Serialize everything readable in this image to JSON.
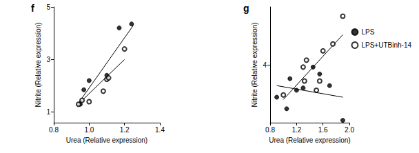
{
  "chart_data": [
    {
      "type": "scatter",
      "title": "f",
      "x_label": "Urea (Relative expression)",
      "y_label": "Nitrite (Relative expression)",
      "xlim": [
        0.8,
        1.4
      ],
      "xticks": [
        0.8,
        {
          "value": 1,
          "label": "1.0"
        },
        1.2,
        1.4
      ],
      "ylim": [
        0.6,
        5
      ],
      "yticks": [
        1,
        3,
        5
      ],
      "series": [
        {
          "name": "LPS",
          "color": "#000000",
          "marker": "circle",
          "x": [
            0.95,
            0.97,
            1.0,
            1.1,
            1.17,
            1.24
          ],
          "values": [
            1.3,
            1.85,
            2.2,
            2.4,
            4.2,
            4.35
          ],
          "fit": {
            "x": [
              0.93,
              1.25
            ],
            "values": [
              1.25,
              4.3
            ]
          }
        },
        {
          "name": "LPS+UTBinh-14",
          "color": "#000000",
          "marker": "open_circle",
          "x": [
            0.94,
            0.96,
            1.0,
            1.08,
            1.1,
            1.11,
            1.2
          ],
          "values": [
            1.3,
            1.45,
            1.4,
            1.8,
            2.25,
            2.3,
            3.4
          ],
          "fit": {
            "x": [
              0.93,
              1.2
            ],
            "values": [
              1.25,
              3.0
            ]
          }
        }
      ]
    },
    {
      "type": "scatter",
      "title": "g",
      "x_label": "Urea (Relative expression)",
      "y_label": "Nitrite (Relative expression)",
      "xlim": [
        0.8,
        2.0
      ],
      "xticks": [
        0.8,
        1.2,
        1.6,
        {
          "value": 2,
          "label": "2.0"
        }
      ],
      "ylim": [
        1.5,
        6.5
      ],
      "yticks": [
        4
      ],
      "legend": "right",
      "series": [
        {
          "name": "LPS",
          "color": "#000000",
          "marker": "circle",
          "x": [
            0.9,
            1.05,
            1.1,
            1.2,
            1.3,
            1.45,
            1.55,
            1.7,
            1.9
          ],
          "values": [
            2.6,
            2.1,
            3.4,
            2.9,
            3.0,
            3.9,
            3.6,
            3.1,
            1.6
          ],
          "fit": {
            "x": [
              0.9,
              1.9
            ],
            "values": [
              3.1,
              2.6
            ]
          }
        },
        {
          "name": "LPS+UTBinh-14",
          "color": "#000000",
          "marker": "open_circle",
          "x": [
            1.0,
            1.3,
            1.35,
            1.32,
            1.5,
            1.55,
            1.6,
            1.75,
            1.9
          ],
          "values": [
            2.7,
            3.9,
            4.2,
            3.3,
            2.9,
            3.3,
            4.6,
            4.9,
            6.1
          ],
          "fit": {
            "x": [
              1.0,
              1.9
            ],
            "values": [
              2.5,
              5.3
            ]
          }
        }
      ]
    }
  ]
}
